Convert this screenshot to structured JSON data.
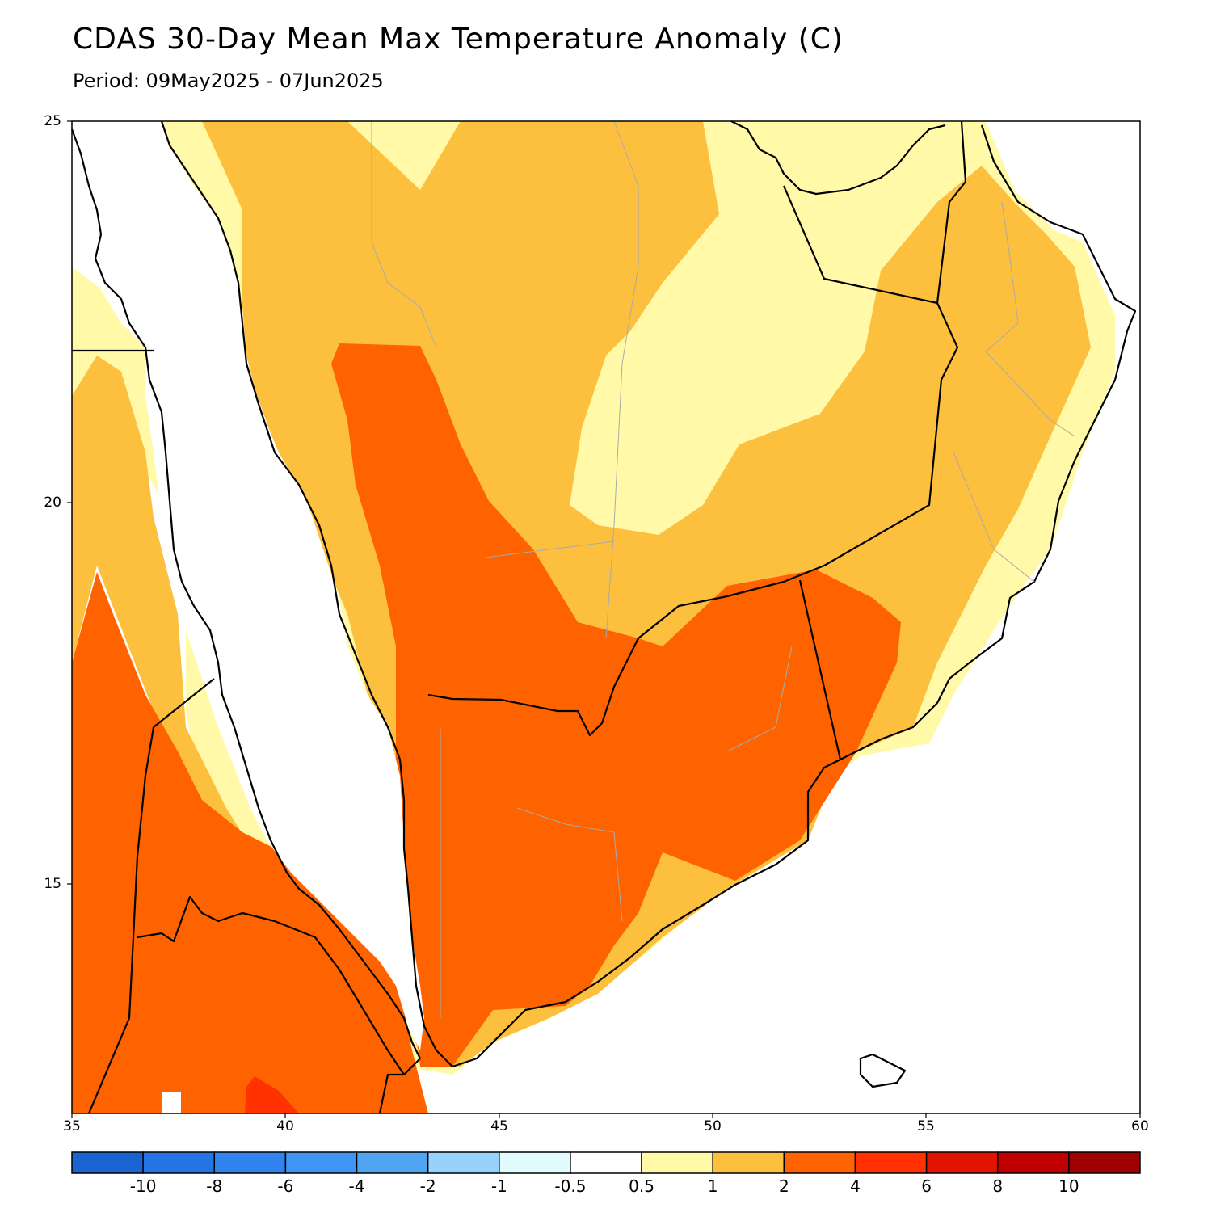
{
  "title": "CDAS 30-Day Mean Max Temperature Anomaly (C)",
  "subtitle": "Period: 09May2025 - 07Jun2025",
  "map": {
    "lon_range": [
      35,
      60
    ],
    "lat_range": [
      12.4,
      25
    ],
    "lat_ticks": [
      "25",
      "20",
      "15"
    ],
    "lon_ticks": [
      "35",
      "40",
      "45",
      "50",
      "55",
      "60"
    ]
  },
  "colorbar": {
    "colors": [
      "#1a64d2",
      "#2474e6",
      "#2f84ee",
      "#3f95f2",
      "#50a5f2",
      "#96d2fa",
      "#e1fbff",
      "#ffffff",
      "#fff9a8",
      "#fcc03e",
      "#ff6300",
      "#ff3200",
      "#e01400",
      "#c00000",
      "#a00000"
    ],
    "labels": [
      "-10",
      "-8",
      "-6",
      "-4",
      "-2",
      "-1",
      "-0.5",
      "0.5",
      "1",
      "2",
      "4",
      "6",
      "8",
      "10"
    ]
  },
  "legend_colors": {
    "c05_1": "#fff9a8",
    "c1_2": "#fcc03e",
    "c2_4": "#ff6300",
    "c4_6": "#ff3200"
  }
}
